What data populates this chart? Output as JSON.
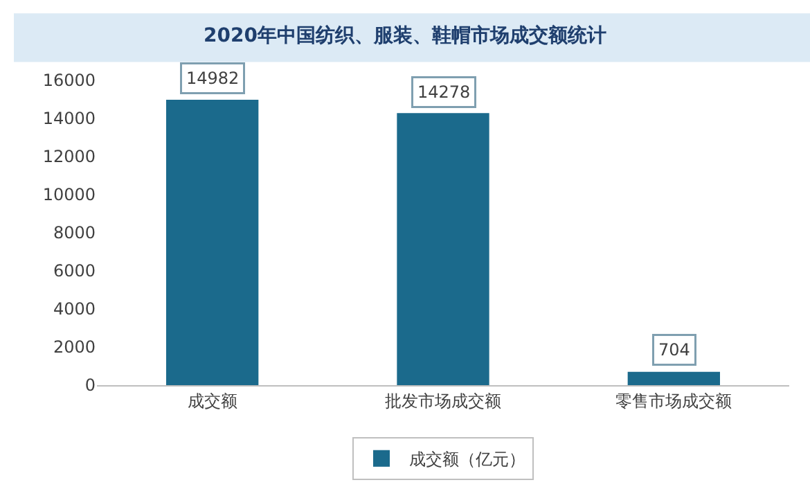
{
  "chart_data": {
    "type": "bar",
    "title": "2020年中国纺织、服装、鞋帽市场成交额统计",
    "categories": [
      "成交额",
      "批发市场成交额",
      "零售市场成交额"
    ],
    "series": [
      {
        "name": "成交额（亿元）",
        "color": "#1b6a8c",
        "values": [
          14982,
          14278,
          704
        ]
      }
    ],
    "ylim": [
      0,
      16000
    ],
    "yticks": [
      0,
      2000,
      4000,
      6000,
      8000,
      10000,
      12000,
      14000,
      16000
    ],
    "data_labels": true,
    "grid": false,
    "legend": "bottom"
  }
}
